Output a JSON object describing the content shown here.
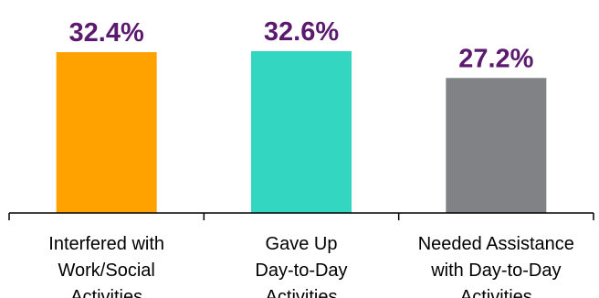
{
  "chart_data": {
    "type": "bar",
    "categories": [
      [
        "Interfered with",
        "Work/Social",
        "Activities"
      ],
      [
        "Gave Up",
        "Day-to-Day",
        "Activities"
      ],
      [
        "Needed Assistance",
        "with Day-to-Day",
        "Activities"
      ]
    ],
    "values": [
      32.4,
      32.6,
      27.2
    ],
    "value_labels": [
      "32.4%",
      "32.6%",
      "27.2%"
    ],
    "title": "",
    "xlabel": "",
    "ylabel": "",
    "ylim": [
      0,
      40
    ],
    "grid": false,
    "legend": "none",
    "colors": {
      "bars": [
        "#FFA200",
        "#33D6C1",
        "#808285"
      ],
      "data_label": "#5B1A6E",
      "axis": "#000000",
      "text": "#000000"
    }
  }
}
